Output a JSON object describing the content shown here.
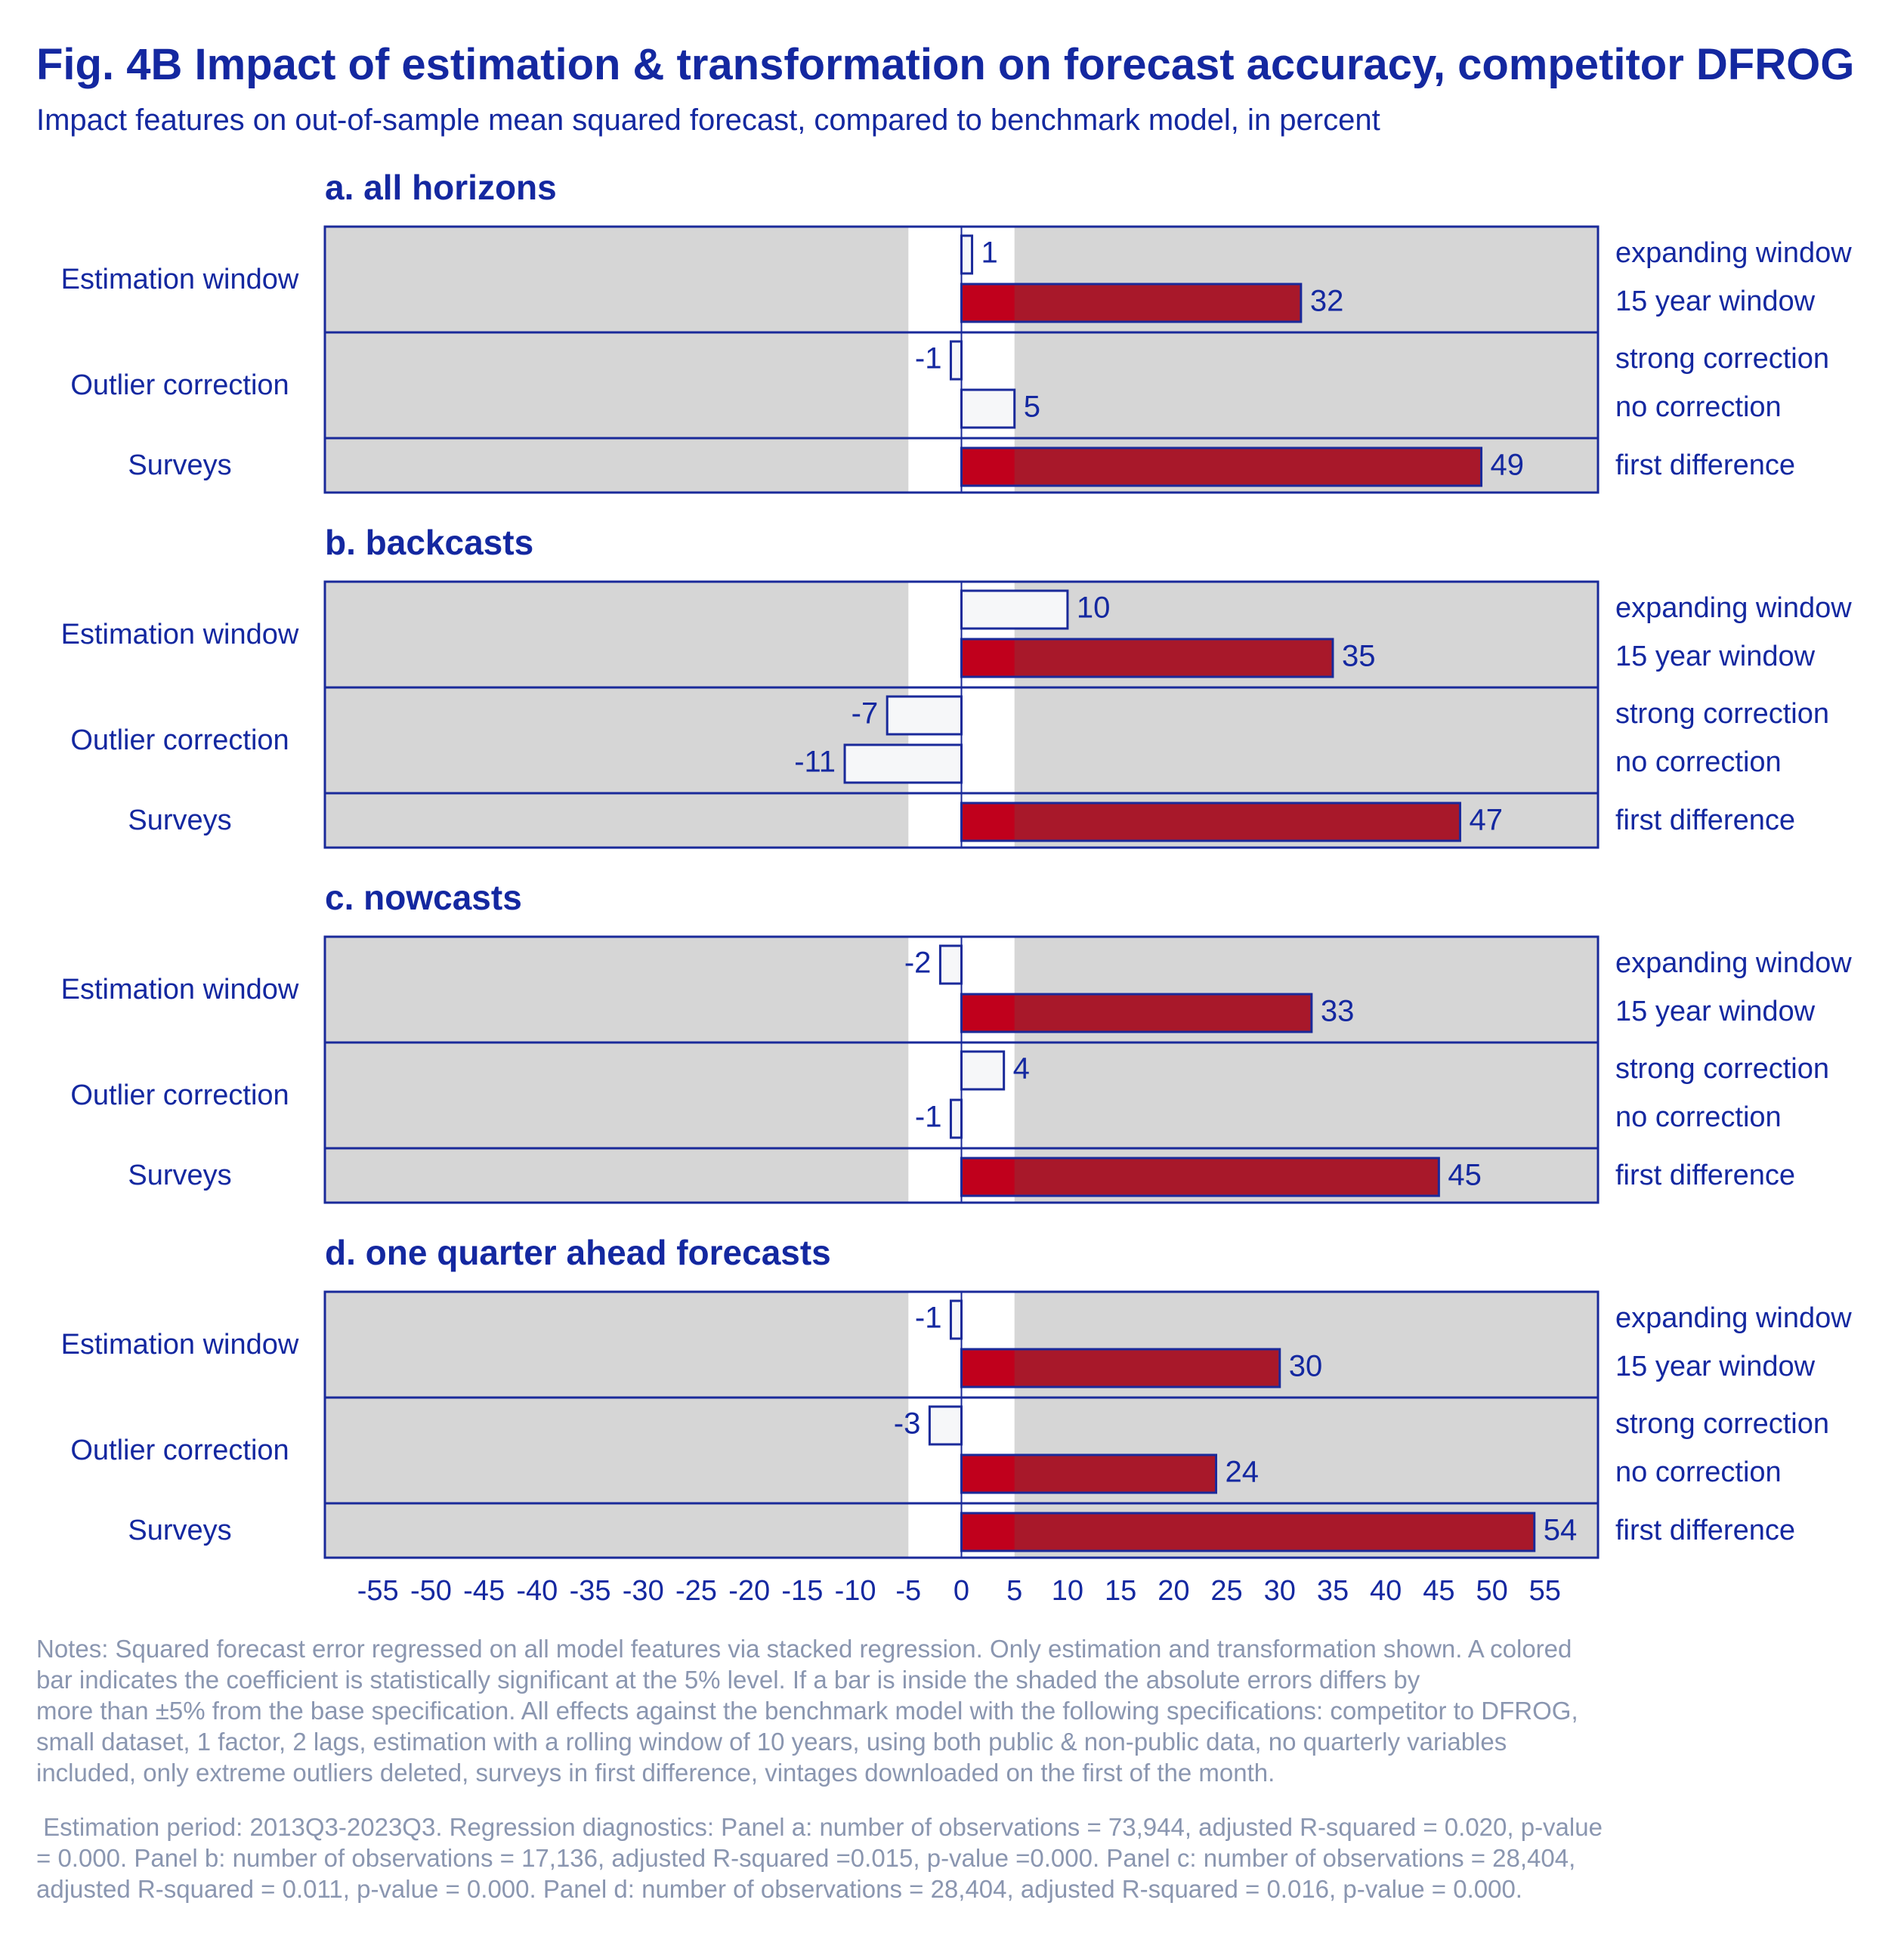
{
  "title": "Fig. 4B Impact of estimation & transformation on forecast accuracy, competitor DFROG",
  "subtitle": "Impact features on out-of-sample mean squared forecast, compared to benchmark model, in percent",
  "colors": {
    "significant": "#c0001c",
    "significant_over_shade": "#a8182a",
    "insignificant": "#f6f7f9",
    "outline": "#1a2a9a",
    "panel_bg": "#d6d6d6",
    "shade_band": "#ffffff",
    "text": "#1428a0",
    "notes": "#8a96b0"
  },
  "chart_data": {
    "type": "bar",
    "orientation": "horizontal",
    "xlim": [
      -60,
      60
    ],
    "shaded_band": [
      -5,
      5
    ],
    "x_ticks": [
      "-55",
      "-50",
      "-45",
      "-40",
      "-35",
      "-30",
      "-25",
      "-20",
      "-15",
      "-10",
      "-5",
      "0",
      "5",
      "10",
      "15",
      "20",
      "25",
      "30",
      "35",
      "40",
      "45",
      "50",
      "55"
    ],
    "groups": [
      {
        "label": "Estimation window",
        "rows": [
          "expanding window",
          "15 year window"
        ]
      },
      {
        "label": "Outlier correction",
        "rows": [
          "strong correction",
          "no correction"
        ]
      },
      {
        "label": "Surveys",
        "rows": [
          "first difference"
        ]
      }
    ],
    "panels": [
      {
        "title": "a. all horizons",
        "bars": [
          {
            "value": 1,
            "label": "1",
            "significant": false
          },
          {
            "value": 32,
            "label": "32",
            "significant": true
          },
          {
            "value": -1,
            "label": "-1",
            "significant": false
          },
          {
            "value": 5,
            "label": "5",
            "significant": false
          },
          {
            "value": 49,
            "label": "49",
            "significant": true
          }
        ]
      },
      {
        "title": "b. backcasts",
        "bars": [
          {
            "value": 10,
            "label": "10",
            "significant": false
          },
          {
            "value": 35,
            "label": "35",
            "significant": true
          },
          {
            "value": -7,
            "label": "-7",
            "significant": false
          },
          {
            "value": -11,
            "label": "-11",
            "significant": false
          },
          {
            "value": 47,
            "label": "47",
            "significant": true
          }
        ]
      },
      {
        "title": "c. nowcasts",
        "bars": [
          {
            "value": -2,
            "label": "-2",
            "significant": false
          },
          {
            "value": 33,
            "label": "33",
            "significant": true
          },
          {
            "value": 4,
            "label": "4",
            "significant": false
          },
          {
            "value": -1,
            "label": "-1",
            "significant": false
          },
          {
            "value": 45,
            "label": "45",
            "significant": true
          }
        ]
      },
      {
        "title": "d. one quarter ahead forecasts",
        "bars": [
          {
            "value": -1,
            "label": "-1",
            "significant": false
          },
          {
            "value": 30,
            "label": "30",
            "significant": true
          },
          {
            "value": -3,
            "label": "-3",
            "significant": false
          },
          {
            "value": 24,
            "label": "24",
            "significant": true
          },
          {
            "value": 54,
            "label": "54",
            "significant": true
          }
        ]
      }
    ]
  },
  "notes": {
    "methodology": "Notes: Squared forecast error regressed on all model features via stacked regression. Only estimation and transformation shown. A colored\nbar indicates the coefficient is statistically significant at the 5% level. If a bar is inside the shaded the absolute errors differs by\nmore than ±5% from the base specification. All effects against the benchmark model with the following specifications: competitor to DFROG,\nsmall dataset, 1 factor, 2 lags, estimation with a rolling window of 10 years, using both public & non-public data, no quarterly variables\nincluded, only extreme outliers deleted, surveys in first difference, vintages downloaded on the first of the month.",
    "diagnostics": " Estimation period: 2013Q3-2023Q3. Regression diagnostics: Panel a: number of observations = 73,944, adjusted R-squared = 0.020, p-value\n= 0.000. Panel b: number of observations = 17,136, adjusted R-squared =0.015, p-value =0.000. Panel c: number of observations = 28,404,\nadjusted R-squared = 0.011, p-value = 0.000. Panel d: number of observations = 28,404, adjusted R-squared = 0.016, p-value = 0.000."
  }
}
